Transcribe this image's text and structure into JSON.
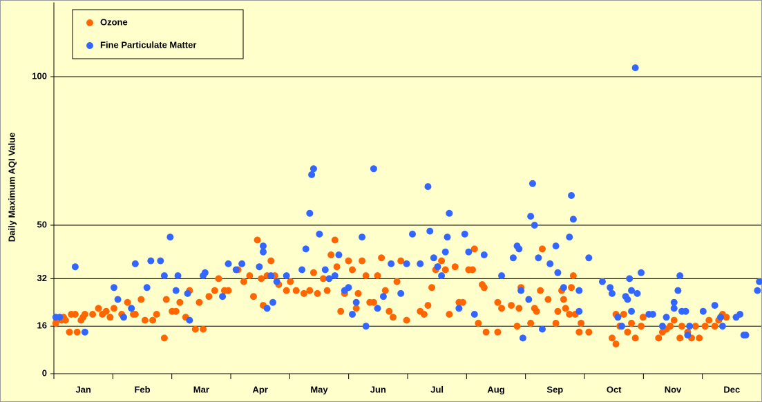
{
  "chart_data": {
    "type": "scatter",
    "y_label": "Daily Maximum AQI Value",
    "categories": [
      "Jan",
      "Feb",
      "Mar",
      "Apr",
      "May",
      "Jun",
      "Jul",
      "Aug",
      "Sep",
      "Oct",
      "Nov",
      "Dec"
    ],
    "xlim": [
      0,
      365
    ],
    "ylim": [
      0,
      125
    ],
    "yticks": [
      0,
      16,
      32,
      50,
      100
    ],
    "grid": true,
    "legend": "upper left",
    "series": [
      {
        "name": "Ozone",
        "color": "#ff6600",
        "x": [
          1,
          4,
          5,
          6,
          8,
          9,
          11,
          12,
          14,
          15,
          16,
          20,
          23,
          25,
          27,
          29,
          31,
          35,
          38,
          41,
          42,
          45,
          47,
          51,
          53,
          57,
          58,
          61,
          63,
          65,
          68,
          70,
          73,
          75,
          77,
          80,
          83,
          85,
          88,
          90,
          95,
          98,
          101,
          103,
          105,
          107,
          108,
          110,
          112,
          114,
          116,
          120,
          122,
          125,
          129,
          132,
          134,
          136,
          139,
          141,
          143,
          145,
          146,
          148,
          150,
          152,
          154,
          156,
          157,
          159,
          161,
          163,
          165,
          167,
          169,
          171,
          173,
          175,
          177,
          179,
          182,
          189,
          191,
          193,
          195,
          197,
          198,
          200,
          202,
          204,
          207,
          209,
          211,
          214,
          216,
          217,
          219,
          221,
          222,
          223,
          229,
          229,
          231,
          236,
          239,
          240,
          241,
          246,
          248,
          249,
          251,
          252,
          255,
          259,
          260,
          262,
          263,
          264,
          266,
          267,
          268,
          269,
          271,
          272,
          276,
          288,
          290,
          290,
          292,
          294,
          296,
          298,
          300,
          303,
          304,
          312,
          314,
          316,
          318,
          320,
          323,
          324,
          327,
          329,
          331,
          333,
          336,
          338,
          341,
          343,
          345,
          347
        ],
        "values": [
          17,
          18,
          19,
          18,
          14,
          20,
          20,
          14,
          18,
          19,
          20,
          20,
          22,
          20,
          21,
          19,
          22,
          20,
          24,
          20,
          20,
          25,
          18,
          18,
          20,
          12,
          25,
          21,
          21,
          24,
          19,
          28,
          15,
          24,
          15,
          26,
          28,
          32,
          28,
          28,
          35,
          31,
          33,
          26,
          45,
          32,
          23,
          33,
          38,
          33,
          30,
          28,
          31,
          28,
          27,
          28,
          34,
          27,
          32,
          28,
          40,
          45,
          36,
          21,
          27,
          38,
          35,
          22,
          27,
          38,
          33,
          24,
          24,
          33,
          39,
          28,
          21,
          19,
          31,
          38,
          18,
          21,
          20,
          23,
          29,
          35,
          36,
          38,
          35,
          20,
          36,
          24,
          24,
          35,
          35,
          42,
          17,
          30,
          29,
          14,
          14,
          24,
          22,
          23,
          16,
          22,
          29,
          17,
          22,
          21,
          28,
          42,
          25,
          17,
          21,
          28,
          25,
          22,
          20,
          29,
          33,
          20,
          14,
          17,
          14,
          12,
          20,
          10,
          16,
          20,
          14,
          17,
          12,
          16,
          19,
          12,
          14,
          15,
          16,
          18,
          12,
          16,
          14,
          12,
          16,
          12,
          16,
          18,
          16,
          18,
          20,
          19
        ]
      },
      {
        "name": "Fine Particulate Matter",
        "color": "#3366ff",
        "x": [
          1,
          3,
          11,
          16,
          31,
          33,
          36,
          40,
          42,
          48,
          50,
          55,
          57,
          60,
          63,
          64,
          69,
          70,
          77,
          78,
          87,
          90,
          94,
          97,
          106,
          108,
          108,
          110,
          112,
          113,
          115,
          120,
          128,
          130,
          132,
          133,
          134,
          137,
          140,
          142,
          145,
          147,
          150,
          152,
          154,
          156,
          159,
          161,
          165,
          167,
          170,
          174,
          179,
          182,
          185,
          189,
          193,
          194,
          196,
          198,
          200,
          202,
          203,
          204,
          209,
          212,
          214,
          217,
          222,
          231,
          237,
          239,
          240,
          241,
          242,
          245,
          246,
          247,
          248,
          250,
          252,
          256,
          259,
          260,
          263,
          266,
          267,
          268,
          271,
          271,
          276,
          283,
          287,
          288,
          291,
          293,
          295,
          296,
          297,
          298,
          298,
          300,
          301,
          303,
          307,
          309,
          314,
          316,
          320,
          320,
          322,
          323,
          324,
          326,
          327,
          328,
          335,
          341,
          344,
          345,
          352,
          354,
          356,
          357,
          363,
          364
        ],
        "values": [
          19,
          19,
          36,
          14,
          29,
          25,
          19,
          22,
          37,
          29,
          38,
          38,
          33,
          46,
          28,
          33,
          27,
          18,
          33,
          34,
          26,
          37,
          35,
          37,
          36,
          41,
          43,
          22,
          33,
          24,
          31,
          33,
          35,
          42,
          54,
          67,
          69,
          47,
          35,
          32,
          33,
          40,
          28,
          29,
          20,
          24,
          46,
          16,
          69,
          22,
          26,
          37,
          27,
          37,
          47,
          37,
          63,
          48,
          39,
          36,
          33,
          41,
          46,
          54,
          22,
          47,
          41,
          20,
          40,
          33,
          39,
          43,
          42,
          28,
          12,
          25,
          53,
          64,
          50,
          39,
          15,
          37,
          43,
          34,
          29,
          46,
          60,
          52,
          28,
          21,
          39,
          31,
          29,
          27,
          19,
          16,
          26,
          25,
          32,
          21,
          28,
          103,
          27,
          34,
          20,
          20,
          16,
          19,
          22,
          24,
          28,
          33,
          21,
          21,
          13,
          16,
          21,
          23,
          19,
          16,
          19,
          20,
          13,
          13,
          28,
          31
        ]
      }
    ]
  }
}
